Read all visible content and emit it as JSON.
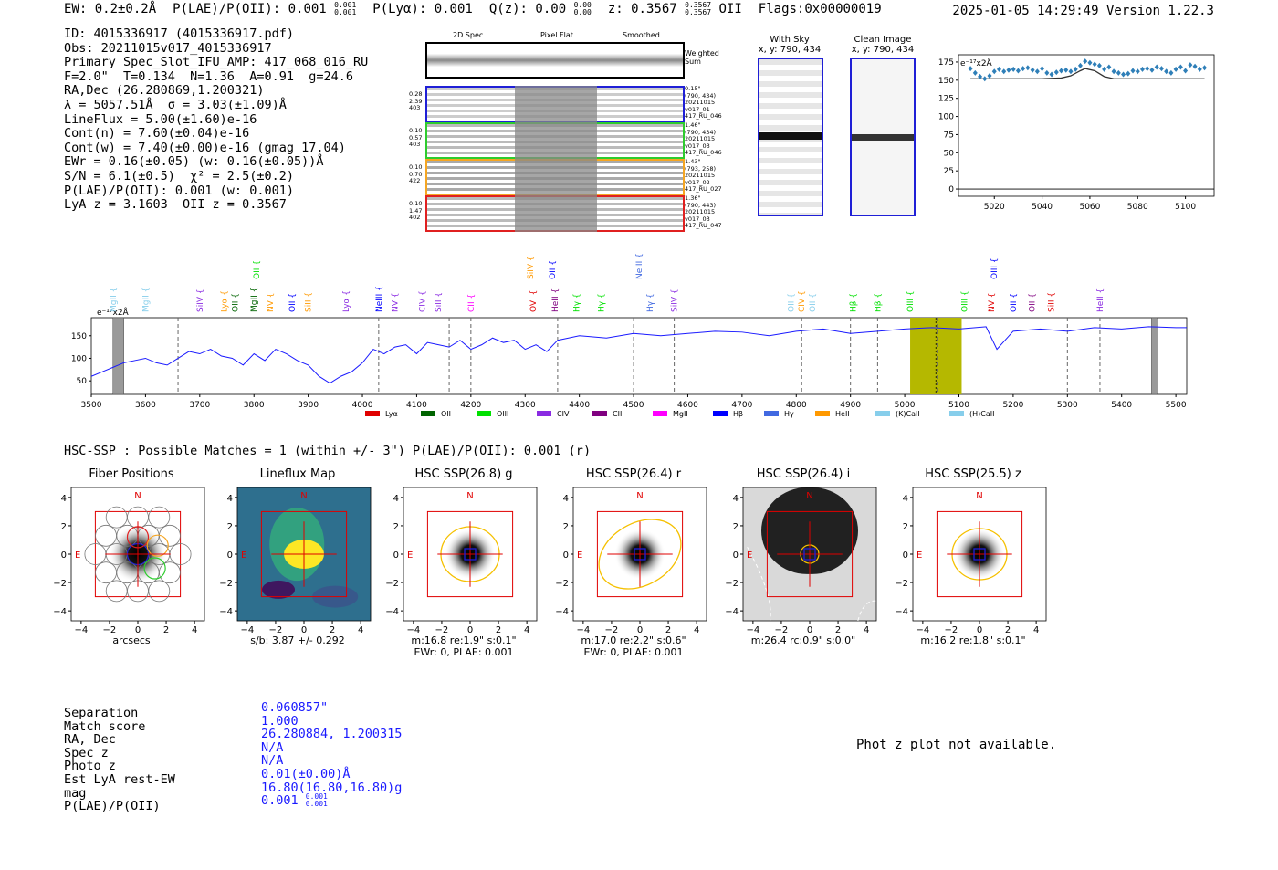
{
  "header": {
    "ew": "EW: 0.2±0.2Å",
    "plae": "P(LAE)/P(OII): 0.001",
    "plae_hi": "0.001",
    "plae_lo": "0.001",
    "plya": "P(Lyα): 0.001",
    "qz": "Q(z): 0.00",
    "qz_hi": "0.00",
    "qz_lo": "0.00",
    "z": "z: 0.3567",
    "z_hi": "0.3567",
    "z_lo": "0.3567",
    "z_line": "OII",
    "flags": "Flags:0x00000019",
    "datetime": "2025-01-05 14:29:49",
    "version": "Version 1.22.3"
  },
  "info": [
    "ID: 4015336917 (4015336917.pdf)",
    "Obs: 20211015v017_4015336917",
    "Primary Spec_Slot_IFU_AMP: 417_068_016_RU",
    "F=2.0\"  T=0.134  N=1.36  A=0.91  g=24.6",
    "RA,Dec (26.280869,1.200321)",
    "λ = 5057.51Å  σ = 3.03(±1.09)Å",
    "LineFlux = 5.00(±1.60)e-16",
    "Cont(n) = 7.60(±0.04)e-16",
    "Cont(w) = 7.40(±0.00)e-16 (gmag 17.04)",
    "EWr = 0.16(±0.05) (w: 0.16(±0.05))Å",
    "S/N = 6.1(±0.5)  χ² = 2.5(±0.2)",
    "P(LAE)/P(OII): 0.001 (w: 0.001)",
    "LyA z = 3.1603  OII z = 0.3567"
  ],
  "cutout_headers": [
    "2D Spec",
    "Pixel Flat",
    "Smoothed"
  ],
  "weighted_sum_label": "Weighted\nSum",
  "fibers": [
    {
      "stats": "0.28\n2.39\n403",
      "meta": "0.15\"\n(790, 434)\n20211015\nv017_01\n417_RU_046",
      "color": "#1f1fd6"
    },
    {
      "stats": "0.10\n0.57\n403",
      "meta": "1.46\"\n(790, 434)\n20211015\nv017_03\n417_RU_046",
      "color": "#2ecc2e"
    },
    {
      "stats": "0.10\n0.70\n422",
      "meta": "1.43\"\n(793, 258)\n20211015\nv017_02\n417_RU_027",
      "color": "#f5a623"
    },
    {
      "stats": "0.10\n1.47\n402",
      "meta": "1.36\"\n(790, 443)\n20211015\nv017_03\n417_RU_047",
      "color": "#e02020"
    }
  ],
  "with_sky": {
    "title": "With Sky",
    "coords": "x, y: 790, 434"
  },
  "clean_image": {
    "title": "Clean Image",
    "coords": "x, y: 790, 434"
  },
  "zoom_axis_label": "e⁻¹⁷x2Å",
  "spec_axis_label": "e⁻¹⁷x2Å",
  "line_legend": [
    "Lyα",
    "OII",
    "OIII",
    "CIV",
    "CIII",
    "MgII",
    "Hβ",
    "Hγ",
    "HeII",
    "(K)CaII",
    "(H)CaII"
  ],
  "line_legend_colors": [
    "#e00000",
    "#006400",
    "#00e000",
    "#8a2be2",
    "#800080",
    "#ff00ff",
    "#0000ff",
    "#4169e1",
    "#ff9900",
    "#87ceeb",
    "#87ceeb"
  ],
  "spectrum_lines": [
    {
      "label": "MgII",
      "x": 3540,
      "c": "#87ceeb"
    },
    {
      "label": "MgII",
      "x": 3600,
      "c": "#87ceeb"
    },
    {
      "label": "SiIV",
      "x": 3700,
      "c": "#8a2be2"
    },
    {
      "label": "Lyα",
      "x": 3745,
      "c": "#ff9900"
    },
    {
      "label": "OII",
      "x": 3765,
      "c": "#006400"
    },
    {
      "label": "MgII",
      "x": 3800,
      "c": "#006400"
    },
    {
      "label": "NV",
      "x": 3830,
      "c": "#ff9900"
    },
    {
      "label": "OII",
      "x": 3870,
      "c": "#0000ff"
    },
    {
      "label": "SiII",
      "x": 3900,
      "c": "#ff9900"
    },
    {
      "label": "Lyα",
      "x": 3970,
      "c": "#8a2be2"
    },
    {
      "label": "NeIII",
      "x": 4030,
      "c": "#0000ff"
    },
    {
      "label": "NV",
      "x": 4060,
      "c": "#8a2be2"
    },
    {
      "label": "CIV",
      "x": 4110,
      "c": "#8a2be2"
    },
    {
      "label": "SiII",
      "x": 4140,
      "c": "#8a2be2"
    },
    {
      "label": "CII",
      "x": 4200,
      "c": "#ff00ff"
    },
    {
      "label": "OVI",
      "x": 4315,
      "c": "#e00000"
    },
    {
      "label": "HeII",
      "x": 4355,
      "c": "#800080"
    },
    {
      "label": "Hγ",
      "x": 4395,
      "c": "#00e000"
    },
    {
      "label": "Hγ",
      "x": 4440,
      "c": "#00e000"
    },
    {
      "label": "Hγ",
      "x": 4530,
      "c": "#4169e1"
    },
    {
      "label": "SiIV",
      "x": 4575,
      "c": "#8a2be2"
    },
    {
      "label": "OII",
      "x": 4790,
      "c": "#87ceeb"
    },
    {
      "label": "CIV",
      "x": 4810,
      "c": "#ff9900"
    },
    {
      "label": "OII",
      "x": 4830,
      "c": "#87ceeb"
    },
    {
      "label": "Hβ",
      "x": 4905,
      "c": "#00e000"
    },
    {
      "label": "Hβ",
      "x": 4950,
      "c": "#00e000"
    },
    {
      "label": "OIII",
      "x": 5010,
      "c": "#00e000"
    },
    {
      "label": "OIII",
      "x": 5110,
      "c": "#00e000"
    },
    {
      "label": "NV",
      "x": 5160,
      "c": "#e00000"
    },
    {
      "label": "OII",
      "x": 5200,
      "c": "#0000ff"
    },
    {
      "label": "OII",
      "x": 5235,
      "c": "#800080"
    },
    {
      "label": "SiII",
      "x": 5270,
      "c": "#e00000"
    },
    {
      "label": "HeII",
      "x": 5360,
      "c": "#8a2be2"
    }
  ],
  "spectrum_high_lines": [
    {
      "label": "OII",
      "x": 3805,
      "c": "#00e000"
    },
    {
      "label": "SiIV",
      "x": 4310,
      "c": "#ff9900"
    },
    {
      "label": "OII",
      "x": 4350,
      "c": "#0000ff"
    },
    {
      "label": "NeIII",
      "x": 4510,
      "c": "#4169e1"
    },
    {
      "label": "OIII",
      "x": 5165,
      "c": "#0000ff"
    }
  ],
  "hsc_title": "HSC-SSP : Possible Matches = 1 (within +/- 3\")  P(LAE)/P(OII): 0.001 (r)",
  "cutouts": [
    {
      "title": "Fiber Positions",
      "cap1": "arcsecs",
      "cap2": ""
    },
    {
      "title": "Lineflux Map",
      "cap1": "s/b: 3.87 +/- 0.292",
      "cap2": ""
    },
    {
      "title": "HSC SSP(26.8) g",
      "cap1": "m:16.8  re:1.9\"  s:0.1\"",
      "cap2": "EWr: 0, PLAE: 0.001"
    },
    {
      "title": "HSC SSP(26.4) r",
      "cap1": "m:17.0  re:2.2\"  s:0.6\"",
      "cap2": "EWr: 0, PLAE: 0.001"
    },
    {
      "title": "HSC SSP(26.4) i",
      "cap1": "m:26.4  rc:0.9\"  s:0.0\"",
      "cap2": ""
    },
    {
      "title": "HSC SSP(25.5) z",
      "cap1": "m:16.2  re:1.8\"  s:0.1\"",
      "cap2": ""
    }
  ],
  "compass_n": "N",
  "compass_e": "E",
  "match_table": [
    {
      "label": "Separation",
      "value": "0.060857\""
    },
    {
      "label": "Match score",
      "value": "1.000"
    },
    {
      "label": "RA, Dec",
      "value": "26.280884, 1.200315"
    },
    {
      "label": "Spec z",
      "value": "N/A"
    },
    {
      "label": "Photo z",
      "value": "N/A"
    },
    {
      "label": "Est LyA rest-EW",
      "value": "0.01(±0.00)Å"
    },
    {
      "label": "mag",
      "value": "16.80(16.80,16.80)g"
    },
    {
      "label": "P(LAE)/P(OII)",
      "value": "0.001"
    }
  ],
  "match_plae_hi": "0.001",
  "match_plae_lo": "0.001",
  "photz_text": "Phot z plot not available.",
  "chart_data": [
    {
      "type": "scatter",
      "title": "",
      "xlabel": "",
      "ylabel": "e⁻¹⁷x2Å",
      "xlim": [
        5005,
        5112
      ],
      "ylim": [
        -10,
        185
      ],
      "xticks": [
        5020,
        5040,
        5060,
        5080,
        5100
      ],
      "yticks": [
        0,
        25,
        50,
        75,
        100,
        125,
        150,
        175
      ],
      "series": [
        {
          "name": "data",
          "x": [
            5010,
            5012,
            5014,
            5016,
            5018,
            5020,
            5022,
            5024,
            5026,
            5028,
            5030,
            5032,
            5034,
            5036,
            5038,
            5040,
            5042,
            5044,
            5046,
            5048,
            5050,
            5052,
            5054,
            5056,
            5058,
            5060,
            5062,
            5064,
            5066,
            5068,
            5070,
            5072,
            5074,
            5076,
            5078,
            5080,
            5082,
            5084,
            5086,
            5088,
            5090,
            5092,
            5094,
            5096,
            5098,
            5100,
            5102,
            5104,
            5106,
            5108
          ],
          "values": [
            166,
            160,
            155,
            152,
            156,
            162,
            165,
            162,
            164,
            165,
            163,
            166,
            167,
            164,
            162,
            166,
            160,
            158,
            161,
            163,
            164,
            162,
            165,
            170,
            176,
            174,
            172,
            170,
            165,
            168,
            162,
            160,
            158,
            159,
            163,
            162,
            165,
            166,
            164,
            168,
            166,
            162,
            160,
            165,
            168,
            163,
            171,
            169,
            165,
            167
          ]
        },
        {
          "name": "model",
          "x": [
            5010,
            5020,
            5040,
            5048,
            5052,
            5056,
            5058,
            5062,
            5066,
            5070,
            5080,
            5100,
            5108
          ],
          "values": [
            152,
            152,
            152,
            153,
            156,
            163,
            166,
            163,
            155,
            152,
            152,
            152,
            152
          ]
        }
      ]
    },
    {
      "type": "line",
      "title": "",
      "xlabel": "",
      "ylabel": "e⁻¹⁷x2Å",
      "xlim": [
        3500,
        5520
      ],
      "ylim": [
        20,
        190
      ],
      "xticks": [
        3500,
        3600,
        3700,
        3800,
        3900,
        4000,
        4100,
        4200,
        4300,
        4400,
        4500,
        4600,
        4700,
        4800,
        4900,
        5000,
        5100,
        5200,
        5300,
        5400,
        5500
      ],
      "yticks": [
        50,
        100,
        150
      ],
      "series": [
        {
          "name": "spectrum",
          "x": [
            3500,
            3520,
            3540,
            3560,
            3580,
            3600,
            3620,
            3640,
            3660,
            3680,
            3700,
            3720,
            3740,
            3760,
            3780,
            3800,
            3820,
            3840,
            3860,
            3880,
            3900,
            3920,
            3940,
            3960,
            3980,
            4000,
            4020,
            4040,
            4060,
            4080,
            4100,
            4120,
            4140,
            4160,
            4180,
            4200,
            4220,
            4240,
            4260,
            4280,
            4300,
            4320,
            4340,
            4360,
            4380,
            4400,
            4450,
            4500,
            4550,
            4600,
            4650,
            4700,
            4750,
            4800,
            4850,
            4900,
            4950,
            5000,
            5050,
            5100,
            5150,
            5170,
            5200,
            5250,
            5300,
            5350,
            5400,
            5450,
            5500,
            5520
          ],
          "values": [
            60,
            70,
            80,
            90,
            95,
            100,
            90,
            85,
            100,
            115,
            110,
            120,
            105,
            100,
            85,
            110,
            95,
            120,
            110,
            95,
            85,
            60,
            45,
            60,
            70,
            90,
            120,
            110,
            125,
            130,
            110,
            135,
            130,
            125,
            140,
            120,
            130,
            145,
            135,
            140,
            120,
            130,
            115,
            140,
            145,
            150,
            145,
            155,
            150,
            155,
            160,
            158,
            150,
            160,
            165,
            155,
            160,
            165,
            168,
            165,
            170,
            120,
            160,
            165,
            160,
            168,
            165,
            170,
            168,
            168
          ]
        }
      ],
      "markers": {
        "dashed_x": [
          3660,
          4030,
          4160,
          4200,
          4360,
          4500,
          4575,
          4810,
          4900,
          4950,
          5060,
          5300,
          5360
        ],
        "highlight_band": [
          5010,
          5105
        ],
        "line_x": 5057.5,
        "masked_bands": [
          [
            3540,
            3560
          ],
          [
            5455,
            5465
          ]
        ]
      }
    }
  ]
}
